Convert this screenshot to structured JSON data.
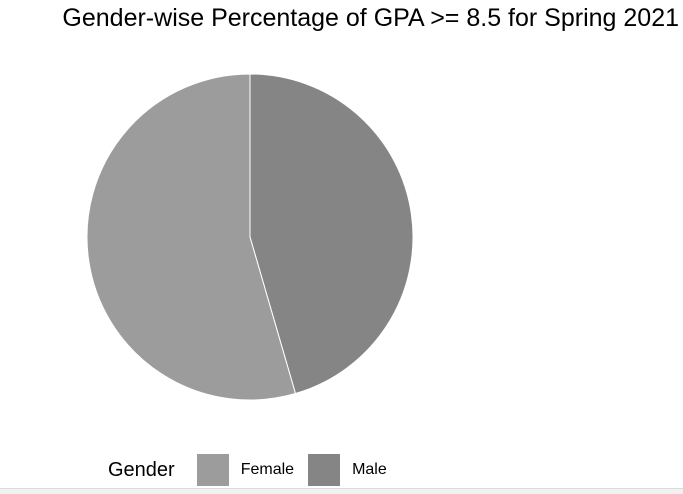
{
  "chart_data": {
    "type": "pie",
    "title": "Gender-wise Percentage of GPA >= 8.5 for Spring 2021",
    "legend_title": "Gender",
    "legend_position": "bottom",
    "slices": [
      {
        "label": "Female",
        "value": 54.5,
        "color": "#9c9c9c"
      },
      {
        "label": "Male",
        "value": 45.5,
        "color": "#858585"
      }
    ]
  }
}
